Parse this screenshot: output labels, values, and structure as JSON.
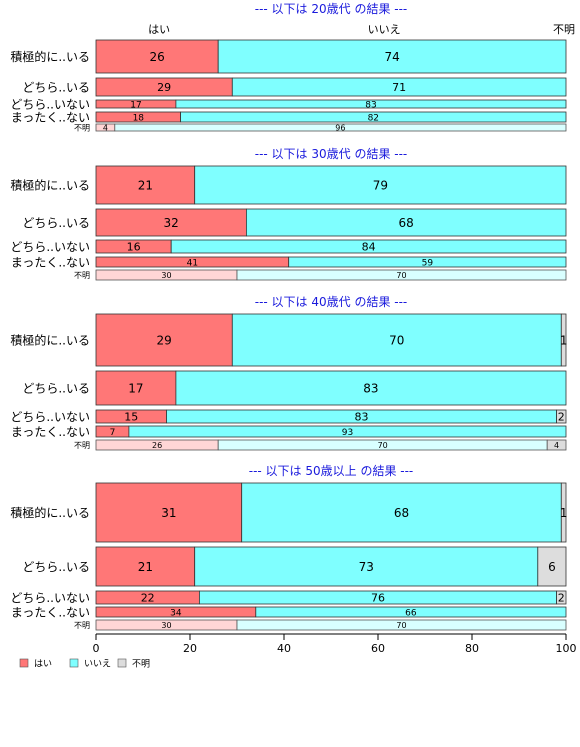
{
  "chart_data": {
    "type": "bar",
    "orientation": "horizontal-stacked-percent",
    "column_headers": [
      "はい",
      "いいえ",
      "不明"
    ],
    "xlim": [
      0,
      100
    ],
    "xticks": [
      0,
      20,
      40,
      60,
      80,
      100
    ],
    "legend": {
      "placement": "bottom-left",
      "items": [
        {
          "label": "はい",
          "color": "#ff7777"
        },
        {
          "label": "いいえ",
          "color": "#7fffff"
        },
        {
          "label": "不明",
          "color": "#dddddd"
        }
      ]
    },
    "colors": {
      "はい": "#ff7777",
      "いいえ": "#7fffff",
      "不明": "#dddddd",
      "はい_unknown": "#ffd6d6",
      "いいえ_unknown": "#d9ffff"
    },
    "panels": [
      {
        "title": "--- 以下は 20歳代 の結果 ---",
        "rows": [
          {
            "label": "積極的に..いる",
            "values": [
              26,
              74,
              0
            ]
          },
          {
            "label": "どちら..いる",
            "values": [
              29,
              71,
              0
            ]
          },
          {
            "label": "どちら..いない",
            "values": [
              17,
              83,
              0
            ]
          },
          {
            "label": "まったく..ない",
            "values": [
              18,
              82,
              0
            ]
          },
          {
            "label": "不明",
            "values": [
              4,
              96,
              0
            ]
          }
        ]
      },
      {
        "title": "--- 以下は 30歳代 の結果 ---",
        "rows": [
          {
            "label": "積極的に..いる",
            "values": [
              21,
              79,
              0
            ]
          },
          {
            "label": "どちら..いる",
            "values": [
              32,
              68,
              0
            ]
          },
          {
            "label": "どちら..いない",
            "values": [
              16,
              84,
              0
            ]
          },
          {
            "label": "まったく..ない",
            "values": [
              41,
              59,
              0
            ]
          },
          {
            "label": "不明",
            "values": [
              30,
              70,
              0
            ]
          }
        ]
      },
      {
        "title": "--- 以下は 40歳代 の結果 ---",
        "rows": [
          {
            "label": "積極的に..いる",
            "values": [
              29,
              70,
              1
            ]
          },
          {
            "label": "どちら..いる",
            "values": [
              17,
              83,
              0
            ]
          },
          {
            "label": "どちら..いない",
            "values": [
              15,
              83,
              2
            ]
          },
          {
            "label": "まったく..ない",
            "values": [
              7,
              93,
              0
            ]
          },
          {
            "label": "不明",
            "values": [
              26,
              70,
              4
            ]
          }
        ]
      },
      {
        "title": "--- 以下は 50歳以上 の結果 ---",
        "rows": [
          {
            "label": "積極的に..いる",
            "values": [
              31,
              68,
              1
            ]
          },
          {
            "label": "どちら..いる",
            "values": [
              21,
              73,
              6
            ]
          },
          {
            "label": "どちら..いない",
            "values": [
              22,
              76,
              2
            ]
          },
          {
            "label": "まったく..ない",
            "values": [
              34,
              66,
              0
            ]
          },
          {
            "label": "不明",
            "values": [
              30,
              70,
              0
            ]
          }
        ]
      }
    ]
  }
}
